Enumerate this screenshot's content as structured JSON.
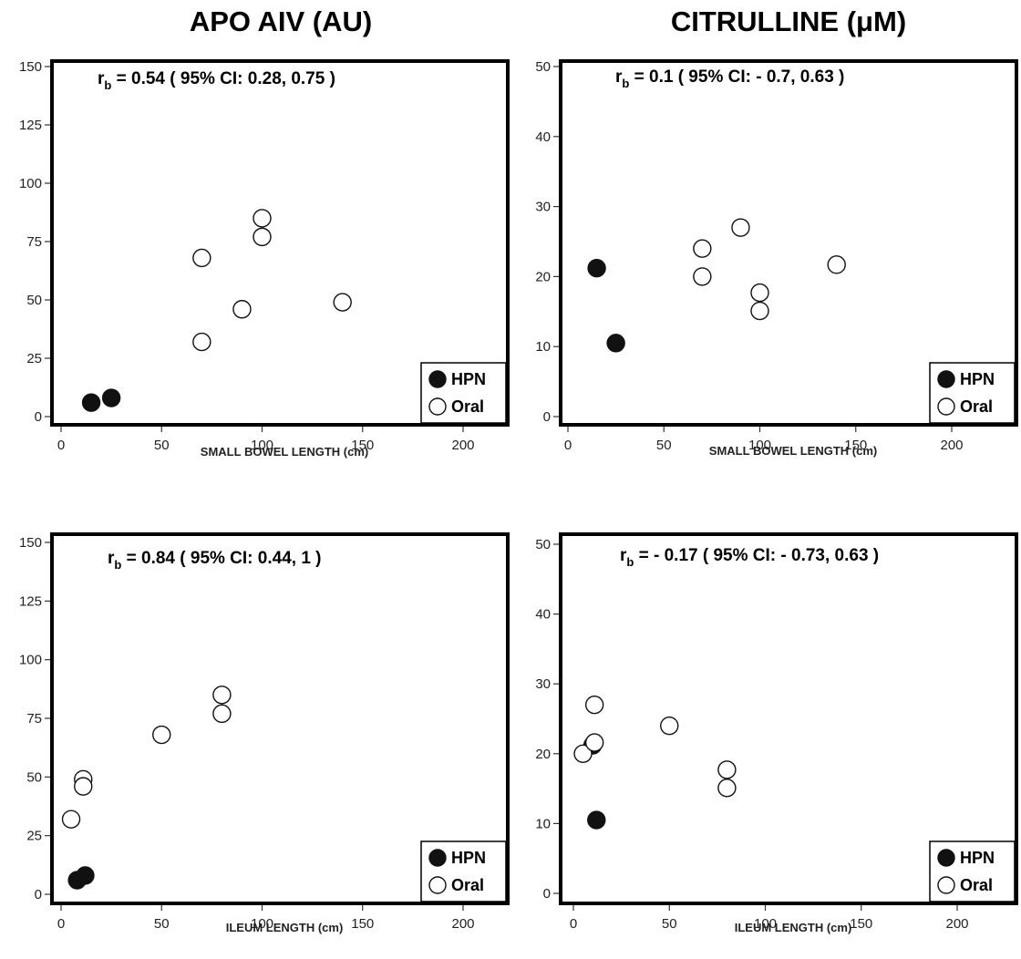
{
  "column_titles": [
    "APO AIV (AU)",
    "CITRULLINE (μM)"
  ],
  "legend": [
    "HPN",
    "Oral"
  ],
  "colors": {
    "hpn_fill": "#111111",
    "oral_fill": "#ffffff",
    "marker_stroke": "#111111",
    "frame": "#000000"
  },
  "chart_data": [
    {
      "type": "scatter",
      "xlabel": "SMALL BOWEL LENGTH (cm)",
      "ylabel": "",
      "xlim": [
        0,
        220
      ],
      "ylim": [
        0,
        150
      ],
      "xticks": [
        0,
        50,
        100,
        150,
        200
      ],
      "yticks": [
        0,
        25,
        50,
        75,
        100,
        125,
        150
      ],
      "annotation": {
        "prefix": "r",
        "subscript": "b",
        "text": " = 0.54 ( 95% CI: 0.28, 0.75 )"
      },
      "legend_position": "bottom-right",
      "series": [
        {
          "name": "HPN",
          "points": [
            [
              15,
              6
            ],
            [
              25,
              8
            ]
          ]
        },
        {
          "name": "Oral",
          "points": [
            [
              70,
              68
            ],
            [
              70,
              32
            ],
            [
              90,
              46
            ],
            [
              100,
              85
            ],
            [
              100,
              77
            ],
            [
              140,
              49
            ]
          ]
        }
      ]
    },
    {
      "type": "scatter",
      "xlabel": "SMALL BOWEL LENGTH (cm)",
      "ylabel": "",
      "xlim": [
        0,
        220
      ],
      "ylim": [
        0,
        50
      ],
      "xticks": [
        0,
        50,
        100,
        150,
        200
      ],
      "yticks": [
        0,
        10,
        20,
        30,
        40,
        50
      ],
      "annotation": {
        "prefix": "r",
        "subscript": "b",
        "text": " = 0.1 ( 95% CI: - 0.7, 0.63 )"
      },
      "legend_position": "bottom-right",
      "series": [
        {
          "name": "HPN",
          "points": [
            [
              15,
              21.2
            ],
            [
              25,
              10.5
            ]
          ]
        },
        {
          "name": "Oral",
          "points": [
            [
              70,
              24
            ],
            [
              70,
              20
            ],
            [
              90,
              27
            ],
            [
              100,
              17.7
            ],
            [
              100,
              15.1
            ],
            [
              140,
              21.7
            ]
          ]
        }
      ]
    },
    {
      "type": "scatter",
      "xlabel": "ILEUM LENGTH (cm)",
      "ylabel": "",
      "xlim": [
        0,
        220
      ],
      "ylim": [
        0,
        150
      ],
      "xticks": [
        0,
        50,
        100,
        150,
        200
      ],
      "yticks": [
        0,
        25,
        50,
        75,
        100,
        125,
        150
      ],
      "annotation": {
        "prefix": "r",
        "subscript": "b",
        "text": " = 0.84 ( 95% CI: 0.44, 1 )"
      },
      "legend_position": "bottom-right",
      "series": [
        {
          "name": "HPN",
          "points": [
            [
              8,
              6
            ],
            [
              12,
              8
            ]
          ]
        },
        {
          "name": "Oral",
          "points": [
            [
              5,
              32
            ],
            [
              11,
              49
            ],
            [
              11,
              46
            ],
            [
              50,
              68
            ],
            [
              80,
              85
            ],
            [
              80,
              77
            ]
          ]
        }
      ]
    },
    {
      "type": "scatter",
      "xlabel": "ILEUM LENGTH (cm)",
      "ylabel": "",
      "xlim": [
        0,
        220
      ],
      "ylim": [
        0,
        50
      ],
      "xticks": [
        0,
        50,
        100,
        150,
        200
      ],
      "yticks": [
        0,
        10,
        20,
        30,
        40,
        50
      ],
      "annotation": {
        "prefix": "r",
        "subscript": "b",
        "text": " = - 0.17 ( 95% CI: - 0.73, 0.63 )"
      },
      "legend_position": "bottom-right",
      "series": [
        {
          "name": "HPN",
          "points": [
            [
              10,
              21.2
            ],
            [
              12,
              10.5
            ]
          ]
        },
        {
          "name": "Oral",
          "points": [
            [
              5,
              20
            ],
            [
              11,
              27
            ],
            [
              11,
              21.6
            ],
            [
              50,
              24
            ],
            [
              80,
              17.7
            ],
            [
              80,
              15.1
            ]
          ]
        }
      ]
    }
  ]
}
